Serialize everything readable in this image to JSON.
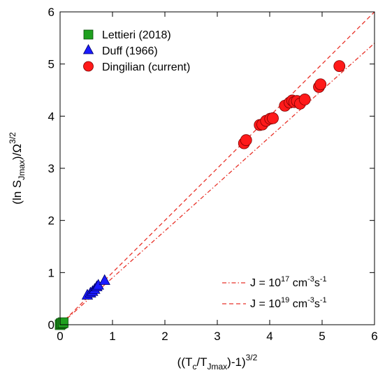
{
  "chart_data": {
    "type": "scatter",
    "xlim": [
      0,
      6
    ],
    "ylim": [
      0,
      6
    ],
    "xticks": [
      "0",
      "1",
      "2",
      "3",
      "4",
      "5",
      "6"
    ],
    "yticks": [
      "0",
      "1",
      "2",
      "3",
      "4",
      "5",
      "6"
    ],
    "xlabel": {
      "pre": "((T",
      "sub1": "c",
      "mid": "/T",
      "sub2": "Jmax",
      "post": ")-1)",
      "sup": "3/2"
    },
    "ylabel": {
      "pre": "(ln S",
      "sub": "Jmax",
      "mid": ")/Ω",
      "sup": "3/2"
    },
    "grid": false,
    "legend_position": "top-left",
    "series": [
      {
        "name": "Lettieri (2018)",
        "marker": "square",
        "color": "#1fa01f",
        "points": [
          [
            0.0,
            0.0
          ],
          [
            0.02,
            0.02
          ],
          [
            0.04,
            0.03
          ],
          [
            0.06,
            0.04
          ]
        ]
      },
      {
        "name": "Duff (1966)",
        "marker": "triangle",
        "color": "#1a1aff",
        "points": [
          [
            0.52,
            0.57
          ],
          [
            0.58,
            0.61
          ],
          [
            0.62,
            0.64
          ],
          [
            0.66,
            0.68
          ],
          [
            0.7,
            0.73
          ],
          [
            0.73,
            0.76
          ],
          [
            0.85,
            0.85
          ]
        ]
      },
      {
        "name": "Dingilian (current)",
        "marker": "circle",
        "color": "#ff1a1a",
        "points": [
          [
            3.51,
            3.48
          ],
          [
            3.55,
            3.54
          ],
          [
            3.81,
            3.83
          ],
          [
            3.86,
            3.84
          ],
          [
            3.93,
            3.91
          ],
          [
            4.01,
            3.95
          ],
          [
            4.06,
            3.96
          ],
          [
            4.29,
            4.2
          ],
          [
            4.38,
            4.26
          ],
          [
            4.43,
            4.3
          ],
          [
            4.47,
            4.27
          ],
          [
            4.52,
            4.29
          ],
          [
            4.58,
            4.24
          ],
          [
            4.67,
            4.32
          ],
          [
            4.94,
            4.56
          ],
          [
            4.97,
            4.61
          ],
          [
            5.33,
            4.96
          ]
        ]
      }
    ],
    "fit_lines": [
      {
        "name_pre": "J = 10",
        "exponent": "17",
        "name_post": " cm",
        "unit_sup1": "-3",
        "unit_mid": "s",
        "unit_sup2": "-1",
        "style": "dashdot",
        "color": "#e8332a",
        "slope": 0.9
      },
      {
        "name_pre": "J = 10",
        "exponent": "19",
        "name_post": " cm",
        "unit_sup1": "-3",
        "unit_mid": "s",
        "unit_sup2": "-1",
        "style": "dashed",
        "color": "#e8332a",
        "slope": 1.0
      }
    ]
  }
}
